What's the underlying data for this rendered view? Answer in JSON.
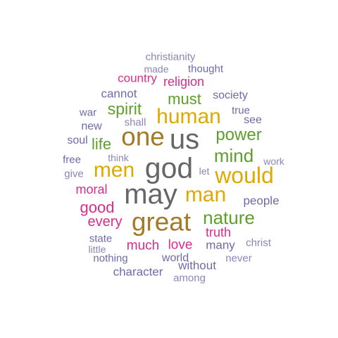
{
  "words": [
    {
      "text": "christianity",
      "color": "#8a86b8"
    },
    {
      "text": "made",
      "color": "#8a86b8"
    },
    {
      "text": "thought",
      "color": "#6e6aa8"
    },
    {
      "text": "country",
      "color": "#d82d8c"
    },
    {
      "text": "religion",
      "color": "#d82d8c"
    },
    {
      "text": "cannot",
      "color": "#6e6aa8"
    },
    {
      "text": "must",
      "color": "#5e9e2a"
    },
    {
      "text": "society",
      "color": "#6e6aa8"
    },
    {
      "text": "spirit",
      "color": "#5e9e2a"
    },
    {
      "text": "human",
      "color": "#e0a800"
    },
    {
      "text": "true",
      "color": "#6e6aa8"
    },
    {
      "text": "war",
      "color": "#6e6aa8"
    },
    {
      "text": "shall",
      "color": "#8a86b8"
    },
    {
      "text": "see",
      "color": "#6e6aa8"
    },
    {
      "text": "new",
      "color": "#6e6aa8"
    },
    {
      "text": "one",
      "color": "#a37a28"
    },
    {
      "text": "us",
      "color": "#666666"
    },
    {
      "text": "power",
      "color": "#5e9e2a"
    },
    {
      "text": "soul",
      "color": "#6e6aa8"
    },
    {
      "text": "life",
      "color": "#5e9e2a"
    },
    {
      "text": "think",
      "color": "#8a86b8"
    },
    {
      "text": "mind",
      "color": "#5e9e2a"
    },
    {
      "text": "free",
      "color": "#6e6aa8"
    },
    {
      "text": "work",
      "color": "#8a86b8"
    },
    {
      "text": "men",
      "color": "#e0a800"
    },
    {
      "text": "god",
      "color": "#666666"
    },
    {
      "text": "let",
      "color": "#8a86b8"
    },
    {
      "text": "would",
      "color": "#e0a800"
    },
    {
      "text": "give",
      "color": "#8a86b8"
    },
    {
      "text": "moral",
      "color": "#d82d8c"
    },
    {
      "text": "may",
      "color": "#666666"
    },
    {
      "text": "man",
      "color": "#e0a800"
    },
    {
      "text": "people",
      "color": "#6e6aa8"
    },
    {
      "text": "good",
      "color": "#d82d8c"
    },
    {
      "text": "nature",
      "color": "#5e9e2a"
    },
    {
      "text": "every",
      "color": "#d82d8c"
    },
    {
      "text": "great",
      "color": "#a37a28"
    },
    {
      "text": "truth",
      "color": "#d82d8c"
    },
    {
      "text": "state",
      "color": "#6e6aa8"
    },
    {
      "text": "much",
      "color": "#d82d8c"
    },
    {
      "text": "love",
      "color": "#d82d8c"
    },
    {
      "text": "many",
      "color": "#6e6aa8"
    },
    {
      "text": "christ",
      "color": "#8a86b8"
    },
    {
      "text": "little",
      "color": "#8a86b8"
    },
    {
      "text": "nothing",
      "color": "#6e6aa8"
    },
    {
      "text": "world",
      "color": "#6e6aa8"
    },
    {
      "text": "without",
      "color": "#6e6aa8"
    },
    {
      "text": "never",
      "color": "#8a86b8"
    },
    {
      "text": "character",
      "color": "#6e6aa8"
    },
    {
      "text": "among",
      "color": "#8a86b8"
    }
  ]
}
